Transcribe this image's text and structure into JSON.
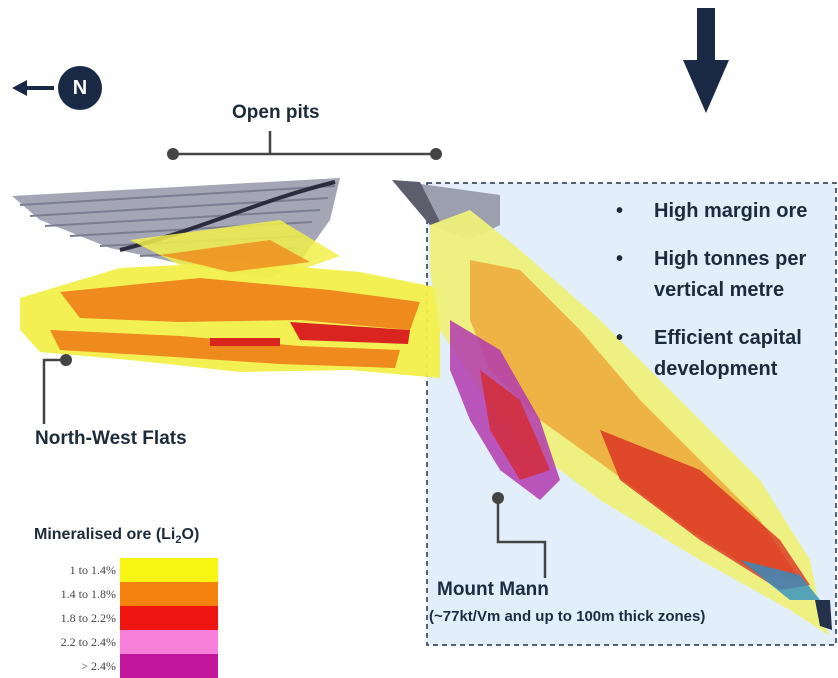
{
  "north": {
    "letter": "N"
  },
  "labels": {
    "open_pits": "Open pits",
    "north_west_flats": "North-West Flats",
    "mount_mann": "Mount Mann",
    "mount_mann_detail": "(~77kt/Vm and up to 100m thick zones)"
  },
  "bullets": [
    "High margin ore",
    "High tonnes per vertical metre",
    "Efficient capital development"
  ],
  "legend": {
    "title_main": "Mineralised ore (Li",
    "title_sub": "2",
    "title_end": "O)",
    "items": [
      {
        "label": "1 to 1.4%",
        "color": "#f7f513"
      },
      {
        "label": "1.4 to 1.8%",
        "color": "#f5820f"
      },
      {
        "label": "1.8 to 2.2%",
        "color": "#ee1410"
      },
      {
        "label": "2.2 to 2.4%",
        "color": "#f57fd9"
      },
      {
        "label": "> 2.4%",
        "color": "#c4169c"
      }
    ]
  },
  "colors": {
    "navy": "#1b2a44",
    "panel_fill": "#e2eef9",
    "yellow": "#f2ef4a",
    "orange": "#ef8a1e",
    "red": "#d9241f",
    "magenta": "#b23ab0",
    "pit_grey": "#9aa0b4"
  }
}
